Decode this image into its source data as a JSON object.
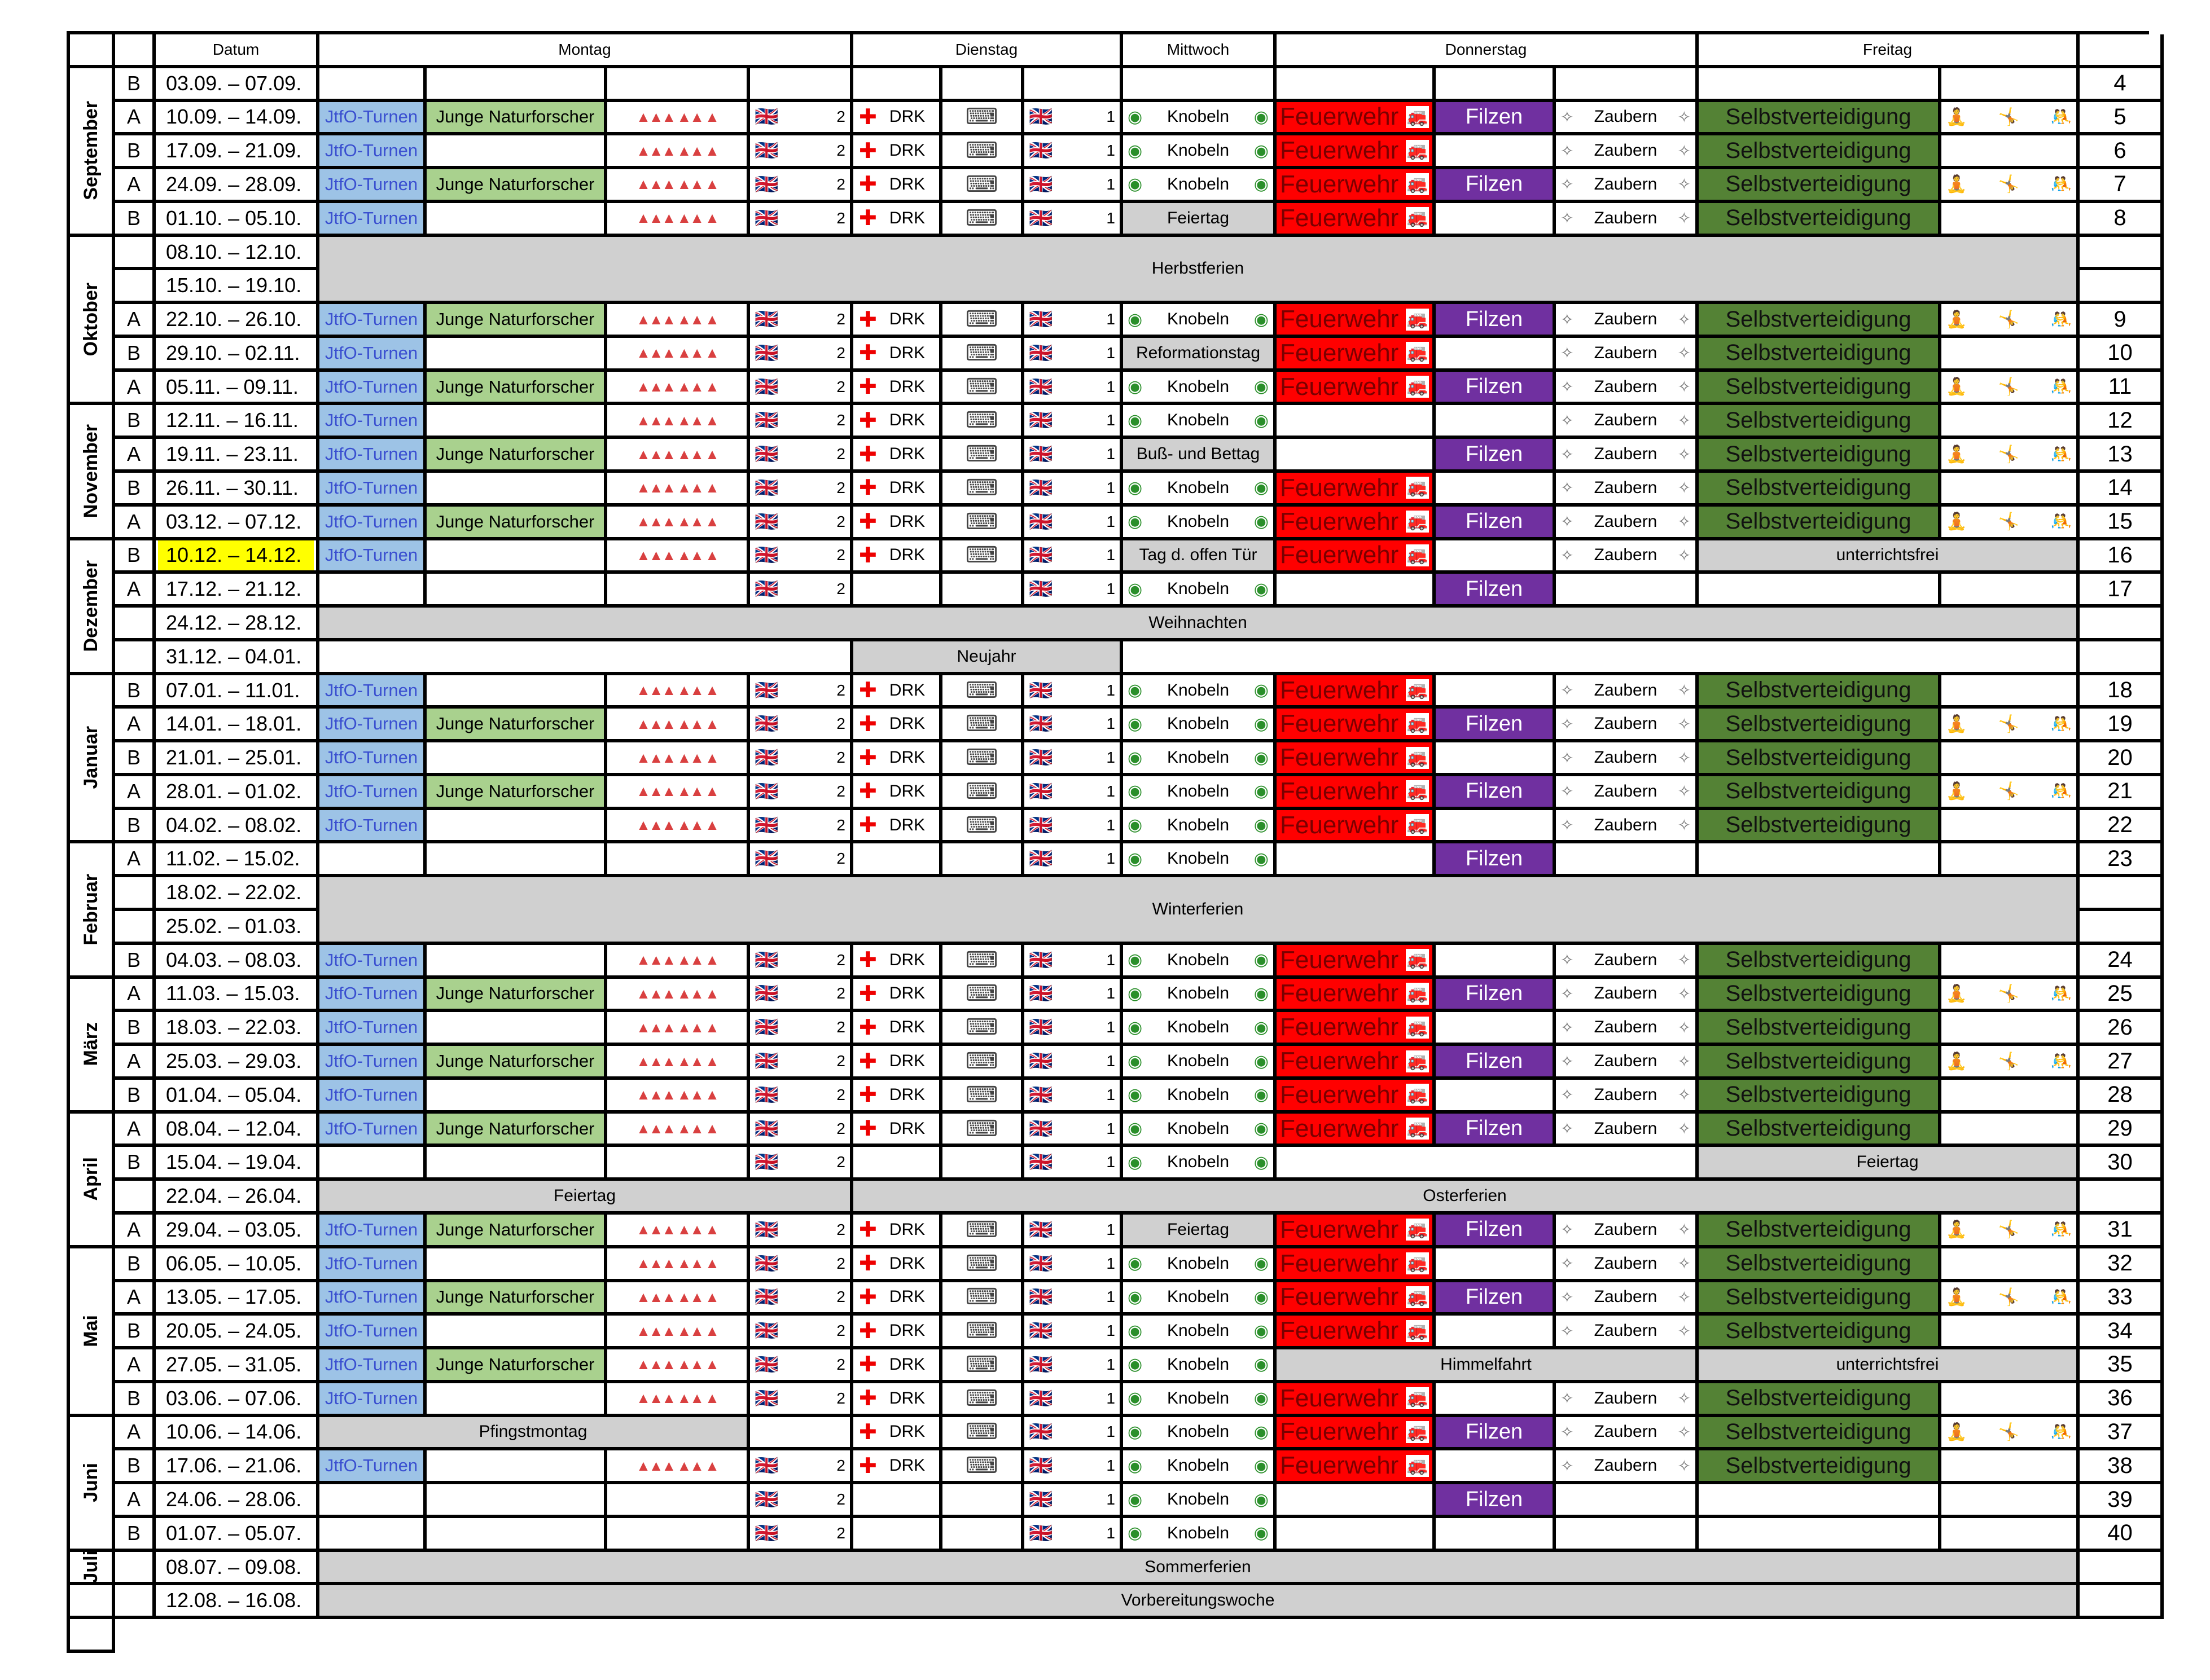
{
  "headers": [
    "Datum",
    "Montag",
    "Dienstag",
    "Mittwoch",
    "Donnerstag",
    "Freitag"
  ],
  "months": [
    "September",
    "Oktober",
    "November",
    "Dezember",
    "Januar",
    "Februar",
    "März",
    "April",
    "Mai",
    "Juni",
    "Juli"
  ],
  "labels": {
    "turnen": "JtfO-Turnen",
    "natur": "Junge Naturforscher",
    "drk": "DRK",
    "knobeln": "Knobeln",
    "feuerwehr": "Feuerwehr",
    "filzen": "Filzen",
    "zaubern": "Zaubern",
    "selbst": "Selbstverteidigung",
    "english_mon": "2",
    "english_tue": "1"
  },
  "icons": {
    "triangles": "red-triangles-icon",
    "flag": "english-flag-icon",
    "cross": "red-cross-icon",
    "keyboard": "keyboard-icon",
    "puzzle": "puzzle-ball-icon",
    "firetruck": "fire-truck-icon",
    "wand": "magic-wand-icon",
    "martial": "martial-arts-icon"
  },
  "colors": {
    "turnen": "#9dc3e6",
    "natur": "#a9d18e",
    "feuerwehr": "#ff0000",
    "filzen": "#7030a0",
    "selbst": "#548235",
    "holiday": "#d0d0d0",
    "highlight": "#ffff00"
  },
  "rows": [
    {
      "w": "B",
      "d": "03.09. – 07.09.",
      "n": "4"
    },
    {
      "w": "A",
      "d": "10.09. – 14.09.",
      "n": "5"
    },
    {
      "w": "B",
      "d": "17.09. – 21.09.",
      "n": "6"
    },
    {
      "w": "A",
      "d": "24.09. – 28.09.",
      "n": "7"
    },
    {
      "w": "B",
      "d": "01.10. – 05.10.",
      "n": "8"
    },
    {
      "w": "",
      "d": "08.10. – 12.10.",
      "n": ""
    },
    {
      "w": "",
      "d": "15.10. – 19.10.",
      "n": ""
    },
    {
      "w": "A",
      "d": "22.10. – 26.10.",
      "n": "9"
    },
    {
      "w": "B",
      "d": "29.10. – 02.11.",
      "n": "10"
    },
    {
      "w": "A",
      "d": "05.11. – 09.11.",
      "n": "11"
    },
    {
      "w": "B",
      "d": "12.11. – 16.11.",
      "n": "12"
    },
    {
      "w": "A",
      "d": "19.11. – 23.11.",
      "n": "13"
    },
    {
      "w": "B",
      "d": "26.11. – 30.11.",
      "n": "14"
    },
    {
      "w": "A",
      "d": "03.12. – 07.12.",
      "n": "15"
    },
    {
      "w": "B",
      "d": "10.12. – 14.12.",
      "n": "16"
    },
    {
      "w": "A",
      "d": "17.12. – 21.12.",
      "n": "17"
    },
    {
      "w": "",
      "d": "24.12. – 28.12.",
      "n": ""
    },
    {
      "w": "",
      "d": "31.12. – 04.01.",
      "n": ""
    },
    {
      "w": "B",
      "d": "07.01. – 11.01.",
      "n": "18"
    },
    {
      "w": "A",
      "d": "14.01. – 18.01.",
      "n": "19"
    },
    {
      "w": "B",
      "d": "21.01. – 25.01.",
      "n": "20"
    },
    {
      "w": "A",
      "d": "28.01. – 01.02.",
      "n": "21"
    },
    {
      "w": "B",
      "d": "04.02. – 08.02.",
      "n": "22"
    },
    {
      "w": "A",
      "d": "11.02. – 15.02.",
      "n": "23"
    },
    {
      "w": "",
      "d": "18.02. – 22.02.",
      "n": ""
    },
    {
      "w": "",
      "d": "25.02. – 01.03.",
      "n": ""
    },
    {
      "w": "B",
      "d": "04.03. – 08.03.",
      "n": "24"
    },
    {
      "w": "A",
      "d": "11.03. – 15.03.",
      "n": "25"
    },
    {
      "w": "B",
      "d": "18.03. – 22.03.",
      "n": "26"
    },
    {
      "w": "A",
      "d": "25.03. – 29.03.",
      "n": "27"
    },
    {
      "w": "B",
      "d": "01.04. – 05.04.",
      "n": "28"
    },
    {
      "w": "A",
      "d": "08.04. – 12.04.",
      "n": "29"
    },
    {
      "w": "B",
      "d": "15.04. – 19.04.",
      "n": "30"
    },
    {
      "w": "",
      "d": "22.04. – 26.04.",
      "n": ""
    },
    {
      "w": "A",
      "d": "29.04. – 03.05.",
      "n": "31"
    },
    {
      "w": "B",
      "d": "06.05. – 10.05.",
      "n": "32"
    },
    {
      "w": "A",
      "d": "13.05. – 17.05.",
      "n": "33"
    },
    {
      "w": "B",
      "d": "20.05. – 24.05.",
      "n": "34"
    },
    {
      "w": "A",
      "d": "27.05. – 31.05.",
      "n": "35"
    },
    {
      "w": "B",
      "d": "03.06. – 07.06.",
      "n": "36"
    },
    {
      "w": "A",
      "d": "10.06. – 14.06.",
      "n": "37"
    },
    {
      "w": "B",
      "d": "17.06. – 21.06.",
      "n": "38"
    },
    {
      "w": "A",
      "d": "24.06. – 28.06.",
      "n": "39"
    },
    {
      "w": "B",
      "d": "01.07. – 05.07.",
      "n": "40"
    },
    {
      "w": "",
      "d": "08.07. – 09.08.",
      "n": ""
    },
    {
      "w": "",
      "d": "12.08. – 16.08.",
      "n": ""
    }
  ],
  "texts": {
    "herbst": "Herbstferien",
    "weihnachten": "Weihnachten",
    "neujahr": "Neujahr",
    "winter": "Winterferien",
    "oster": "Osterferien",
    "sommer": "Sommerferien",
    "vorbereitung": "Vorbereitungswoche",
    "pfingst": "Pfingstmontag",
    "feiertag": "Feiertag",
    "reformation": "Reformationstag",
    "buss": "Buß- und Bettag",
    "tag_offen": "Tag d. offen Tür",
    "unterrichtsfrei": "unterrichtsfrei",
    "himmelfahrt": "Himmelfahrt"
  },
  "wed_override": {
    "4": "feiertag",
    "8": "reformation",
    "11": "buss",
    "14": "tag_offen",
    "34": "feiertag"
  },
  "mon_natur": [
    1,
    3,
    7,
    9,
    11,
    13,
    19,
    21,
    27,
    29,
    31,
    34,
    36,
    38
  ],
  "mon_turnen": [
    1,
    2,
    3,
    4,
    7,
    8,
    9,
    10,
    11,
    12,
    13,
    14,
    18,
    19,
    20,
    21,
    22,
    26,
    27,
    28,
    29,
    30,
    31,
    34,
    35,
    36,
    37,
    38,
    39,
    41
  ],
  "mon_tri": [
    1,
    2,
    3,
    4,
    7,
    8,
    9,
    10,
    11,
    12,
    13,
    14,
    18,
    19,
    20,
    21,
    22,
    26,
    27,
    28,
    29,
    30,
    31,
    34,
    35,
    36,
    37,
    38,
    39,
    41
  ],
  "mon_en": [
    1,
    2,
    3,
    4,
    7,
    8,
    9,
    10,
    11,
    12,
    13,
    14,
    15,
    18,
    19,
    20,
    21,
    22,
    23,
    26,
    27,
    28,
    29,
    30,
    31,
    32,
    34,
    35,
    36,
    37,
    38,
    39,
    41,
    42,
    43
  ],
  "tue_drk": [
    1,
    2,
    3,
    4,
    7,
    8,
    9,
    10,
    11,
    12,
    13,
    14,
    18,
    19,
    20,
    21,
    22,
    26,
    27,
    28,
    29,
    30,
    31,
    34,
    35,
    36,
    37,
    38,
    39,
    40,
    41
  ],
  "tue_en": [
    1,
    2,
    3,
    4,
    7,
    8,
    9,
    10,
    11,
    12,
    13,
    14,
    15,
    18,
    19,
    20,
    21,
    22,
    23,
    26,
    27,
    28,
    29,
    30,
    31,
    32,
    34,
    35,
    36,
    37,
    38,
    39,
    40,
    41,
    42,
    43
  ],
  "wed_knobeln": [
    1,
    2,
    3,
    7,
    9,
    10,
    12,
    13,
    15,
    18,
    19,
    20,
    21,
    22,
    23,
    26,
    27,
    28,
    29,
    30,
    31,
    32,
    35,
    36,
    37,
    38,
    39,
    40,
    41,
    42,
    43
  ],
  "thu_fw": [
    1,
    2,
    3,
    4,
    7,
    8,
    9,
    12,
    13,
    14,
    18,
    19,
    20,
    21,
    22,
    26,
    27,
    28,
    29,
    30,
    31,
    34,
    35,
    36,
    37,
    39,
    40,
    41
  ],
  "thu_filzen": [
    1,
    3,
    7,
    9,
    11,
    13,
    15,
    19,
    21,
    23,
    27,
    29,
    31,
    34,
    36,
    40,
    42
  ],
  "thu_zaubern": [
    1,
    2,
    3,
    4,
    7,
    8,
    9,
    10,
    11,
    12,
    13,
    14,
    18,
    19,
    20,
    21,
    22,
    26,
    27,
    28,
    29,
    30,
    31,
    34,
    35,
    36,
    37,
    39,
    40,
    41
  ],
  "fri_sv": [
    1,
    2,
    3,
    4,
    7,
    8,
    9,
    10,
    11,
    12,
    13,
    18,
    19,
    20,
    21,
    22,
    26,
    27,
    28,
    29,
    30,
    31,
    34,
    35,
    36,
    37,
    39,
    40,
    41
  ],
  "fri_ma": [
    1,
    3,
    7,
    9,
    11,
    13,
    19,
    21,
    27,
    29,
    34,
    36,
    40
  ]
}
